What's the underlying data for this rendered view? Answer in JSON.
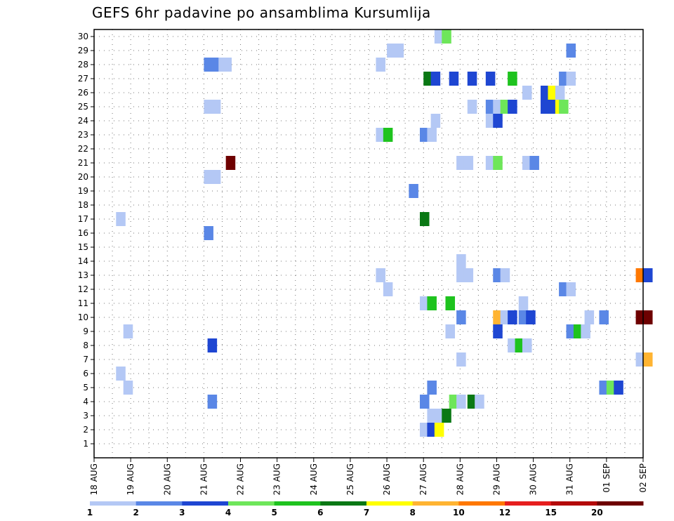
{
  "chart_data": {
    "type": "heatmap",
    "title": "GEFS 6hr padavine po ansamblima Kursumlija",
    "xlabel": "",
    "ylabel": "",
    "x_tick_labels": [
      "18 AUG",
      "19 AUG",
      "20 AUG",
      "21 AUG",
      "22 AUG",
      "23 AUG",
      "24 AUG",
      "25 AUG",
      "26 AUG",
      "27 AUG",
      "28 AUG",
      "29 AUG",
      "30 AUG",
      "31 AUG",
      "01 SEP",
      "02 SEP"
    ],
    "y_tick_labels": [
      "1",
      "2",
      "3",
      "4",
      "5",
      "6",
      "7",
      "8",
      "9",
      "10",
      "11",
      "12",
      "13",
      "14",
      "15",
      "16",
      "17",
      "18",
      "19",
      "20",
      "21",
      "22",
      "23",
      "24",
      "25",
      "26",
      "27",
      "28",
      "29",
      "30"
    ],
    "time_steps_per_day": 4,
    "grid": true,
    "colorbar": {
      "placement": "bottom",
      "levels": [
        1,
        2,
        3,
        4,
        5,
        6,
        7,
        8,
        10,
        12,
        15,
        20
      ],
      "tick_labels": [
        "1",
        "2",
        "3",
        "4",
        "5",
        "6",
        "7",
        "8",
        "10",
        "12",
        "15",
        "20"
      ],
      "colors": [
        "#b4c8f5",
        "#5a87e6",
        "#1e46d2",
        "#6ee65a",
        "#1ec31e",
        "#0a7814",
        "#ffff00",
        "#ffb432",
        "#ff7800",
        "#e61e1e",
        "#b40a0a",
        "#6e0000"
      ]
    },
    "cells": [
      {
        "member": 30,
        "day": 9.3,
        "value": 1
      },
      {
        "member": 30,
        "day": 9.5,
        "value": 4
      },
      {
        "member": 29,
        "day": 8.0,
        "value": 1
      },
      {
        "member": 29,
        "day": 8.2,
        "value": 1
      },
      {
        "member": 29,
        "day": 12.9,
        "value": 2
      },
      {
        "member": 28,
        "day": 3.0,
        "value": 2
      },
      {
        "member": 28,
        "day": 3.2,
        "value": 2
      },
      {
        "member": 28,
        "day": 3.4,
        "value": 1
      },
      {
        "member": 28,
        "day": 3.5,
        "value": 1
      },
      {
        "member": 28,
        "day": 7.7,
        "value": 1
      },
      {
        "member": 27,
        "day": 9.0,
        "value": 6
      },
      {
        "member": 27,
        "day": 9.2,
        "value": 3
      },
      {
        "member": 27,
        "day": 9.7,
        "value": 3
      },
      {
        "member": 27,
        "day": 10.2,
        "value": 3
      },
      {
        "member": 27,
        "day": 10.7,
        "value": 3
      },
      {
        "member": 27,
        "day": 11.3,
        "value": 5
      },
      {
        "member": 27,
        "day": 12.7,
        "value": 2
      },
      {
        "member": 27,
        "day": 12.9,
        "value": 1
      },
      {
        "member": 26,
        "day": 11.7,
        "value": 1
      },
      {
        "member": 26,
        "day": 12.2,
        "value": 3
      },
      {
        "member": 26,
        "day": 12.4,
        "value": 7
      },
      {
        "member": 26,
        "day": 12.6,
        "value": 1
      },
      {
        "member": 25,
        "day": 3.0,
        "value": 1
      },
      {
        "member": 25,
        "day": 3.2,
        "value": 1
      },
      {
        "member": 25,
        "day": 10.2,
        "value": 1
      },
      {
        "member": 25,
        "day": 10.7,
        "value": 2
      },
      {
        "member": 25,
        "day": 10.9,
        "value": 1
      },
      {
        "member": 25,
        "day": 11.1,
        "value": 4
      },
      {
        "member": 25,
        "day": 11.3,
        "value": 3
      },
      {
        "member": 25,
        "day": 12.2,
        "value": 3
      },
      {
        "member": 25,
        "day": 12.4,
        "value": 3
      },
      {
        "member": 25,
        "day": 12.6,
        "value": 7
      },
      {
        "member": 25,
        "day": 12.7,
        "value": 4
      },
      {
        "member": 24,
        "day": 9.2,
        "value": 1
      },
      {
        "member": 24,
        "day": 10.7,
        "value": 1
      },
      {
        "member": 24,
        "day": 10.9,
        "value": 3
      },
      {
        "member": 23,
        "day": 7.7,
        "value": 1
      },
      {
        "member": 23,
        "day": 7.9,
        "value": 5
      },
      {
        "member": 23,
        "day": 8.9,
        "value": 2
      },
      {
        "member": 23,
        "day": 9.1,
        "value": 1
      },
      {
        "member": 21,
        "day": 3.6,
        "value": 20
      },
      {
        "member": 21,
        "day": 9.9,
        "value": 1
      },
      {
        "member": 21,
        "day": 10.1,
        "value": 1
      },
      {
        "member": 21,
        "day": 10.7,
        "value": 1
      },
      {
        "member": 21,
        "day": 10.9,
        "value": 4
      },
      {
        "member": 21,
        "day": 11.7,
        "value": 1
      },
      {
        "member": 21,
        "day": 11.9,
        "value": 2
      },
      {
        "member": 20,
        "day": 3.0,
        "value": 1
      },
      {
        "member": 20,
        "day": 3.2,
        "value": 1
      },
      {
        "member": 19,
        "day": 8.6,
        "value": 2
      },
      {
        "member": 17,
        "day": 0.6,
        "value": 1
      },
      {
        "member": 17,
        "day": 8.9,
        "value": 6
      },
      {
        "member": 16,
        "day": 3.0,
        "value": 2
      },
      {
        "member": 14,
        "day": 9.9,
        "value": 1
      },
      {
        "member": 13,
        "day": 7.7,
        "value": 1
      },
      {
        "member": 13,
        "day": 9.9,
        "value": 1
      },
      {
        "member": 13,
        "day": 10.1,
        "value": 1
      },
      {
        "member": 13,
        "day": 10.9,
        "value": 2
      },
      {
        "member": 13,
        "day": 11.1,
        "value": 1
      },
      {
        "member": 13,
        "day": 14.8,
        "value": 10
      },
      {
        "member": 13,
        "day": 15.0,
        "value": 3
      },
      {
        "member": 12,
        "day": 7.9,
        "value": 1
      },
      {
        "member": 12,
        "day": 12.7,
        "value": 2
      },
      {
        "member": 12,
        "day": 12.9,
        "value": 1
      },
      {
        "member": 11,
        "day": 8.9,
        "value": 1
      },
      {
        "member": 11,
        "day": 9.1,
        "value": 5
      },
      {
        "member": 11,
        "day": 9.6,
        "value": 5
      },
      {
        "member": 11,
        "day": 11.6,
        "value": 1
      },
      {
        "member": 10,
        "day": 9.9,
        "value": 2
      },
      {
        "member": 10,
        "day": 10.9,
        "value": 8
      },
      {
        "member": 10,
        "day": 11.1,
        "value": 1
      },
      {
        "member": 10,
        "day": 11.3,
        "value": 3
      },
      {
        "member": 10,
        "day": 11.6,
        "value": 2
      },
      {
        "member": 10,
        "day": 11.8,
        "value": 3
      },
      {
        "member": 10,
        "day": 13.4,
        "value": 1
      },
      {
        "member": 10,
        "day": 13.8,
        "value": 2
      },
      {
        "member": 10,
        "day": 14.8,
        "value": 20
      },
      {
        "member": 10,
        "day": 15.0,
        "value": 20
      },
      {
        "member": 9,
        "day": 0.8,
        "value": 1
      },
      {
        "member": 9,
        "day": 9.6,
        "value": 1
      },
      {
        "member": 9,
        "day": 10.9,
        "value": 3
      },
      {
        "member": 9,
        "day": 12.9,
        "value": 2
      },
      {
        "member": 9,
        "day": 13.1,
        "value": 5
      },
      {
        "member": 9,
        "day": 13.3,
        "value": 1
      },
      {
        "member": 8,
        "day": 3.1,
        "value": 3
      },
      {
        "member": 8,
        "day": 11.3,
        "value": 1
      },
      {
        "member": 8,
        "day": 11.5,
        "value": 5
      },
      {
        "member": 8,
        "day": 11.7,
        "value": 1
      },
      {
        "member": 7,
        "day": 9.9,
        "value": 1
      },
      {
        "member": 7,
        "day": 14.8,
        "value": 1
      },
      {
        "member": 7,
        "day": 15.0,
        "value": 8
      },
      {
        "member": 6,
        "day": 0.6,
        "value": 1
      },
      {
        "member": 5,
        "day": 0.8,
        "value": 1
      },
      {
        "member": 5,
        "day": 9.1,
        "value": 2
      },
      {
        "member": 5,
        "day": 13.8,
        "value": 2
      },
      {
        "member": 5,
        "day": 14.0,
        "value": 4
      },
      {
        "member": 5,
        "day": 14.2,
        "value": 3
      },
      {
        "member": 4,
        "day": 3.1,
        "value": 2
      },
      {
        "member": 4,
        "day": 8.9,
        "value": 2
      },
      {
        "member": 4,
        "day": 9.7,
        "value": 4
      },
      {
        "member": 4,
        "day": 9.9,
        "value": 1
      },
      {
        "member": 4,
        "day": 10.2,
        "value": 6
      },
      {
        "member": 4,
        "day": 10.4,
        "value": 1
      },
      {
        "member": 3,
        "day": 9.1,
        "value": 1
      },
      {
        "member": 3,
        "day": 9.3,
        "value": 1
      },
      {
        "member": 3,
        "day": 9.5,
        "value": 6
      },
      {
        "member": 2,
        "day": 8.9,
        "value": 1
      },
      {
        "member": 2,
        "day": 9.1,
        "value": 3
      },
      {
        "member": 2,
        "day": 9.3,
        "value": 7
      }
    ]
  }
}
